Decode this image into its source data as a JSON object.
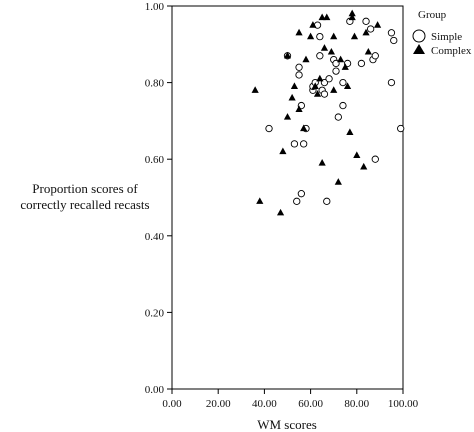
{
  "chart_data": {
    "type": "scatter",
    "title": "",
    "xlabel": "WM scores",
    "ylabel_lines": [
      "Proportion scores of",
      "correctly recalled recasts"
    ],
    "xlim": [
      0,
      100
    ],
    "ylim": [
      0,
      1
    ],
    "x_ticks": [
      0,
      20,
      40,
      60,
      80,
      100
    ],
    "x_tick_labels": [
      "0.00",
      "20.00",
      "40.00",
      "60.00",
      "80.00",
      "100.00"
    ],
    "y_ticks": [
      0,
      0.2,
      0.4,
      0.6,
      0.8,
      1.0
    ],
    "y_tick_labels": [
      "0.00",
      "0.20",
      "0.40",
      "0.60",
      "0.80",
      "1.00"
    ],
    "grid": false,
    "legend": {
      "title": "Group",
      "placement": "top-right",
      "entries": [
        {
          "name": "Simple",
          "marker": "open-circle"
        },
        {
          "name": "Complex",
          "marker": "filled-triangle"
        }
      ]
    },
    "series": [
      {
        "name": "Simple",
        "marker": "open-circle",
        "points": [
          [
            42,
            0.68
          ],
          [
            50,
            0.87
          ],
          [
            53,
            0.64
          ],
          [
            54,
            0.49
          ],
          [
            55,
            0.84
          ],
          [
            55,
            0.82
          ],
          [
            56,
            0.51
          ],
          [
            56,
            0.74
          ],
          [
            57,
            0.64
          ],
          [
            58,
            0.68
          ],
          [
            61,
            0.78
          ],
          [
            61,
            0.79
          ],
          [
            62,
            0.8
          ],
          [
            63,
            0.95
          ],
          [
            64,
            0.92
          ],
          [
            64,
            0.87
          ],
          [
            65,
            0.78
          ],
          [
            66,
            0.77
          ],
          [
            66,
            0.8
          ],
          [
            67,
            0.49
          ],
          [
            68,
            0.81
          ],
          [
            70,
            0.86
          ],
          [
            71,
            0.85
          ],
          [
            71,
            0.83
          ],
          [
            72,
            0.71
          ],
          [
            74,
            0.74
          ],
          [
            74,
            0.8
          ],
          [
            76,
            0.85
          ],
          [
            77,
            0.96
          ],
          [
            82,
            0.85
          ],
          [
            84,
            0.96
          ],
          [
            86,
            0.94
          ],
          [
            87,
            0.86
          ],
          [
            88,
            0.87
          ],
          [
            88,
            0.6
          ],
          [
            95,
            0.93
          ],
          [
            96,
            0.91
          ],
          [
            95,
            0.8
          ],
          [
            99,
            0.68
          ]
        ]
      },
      {
        "name": "Complex",
        "marker": "filled-triangle",
        "points": [
          [
            36,
            0.78
          ],
          [
            38,
            0.49
          ],
          [
            47,
            0.46
          ],
          [
            48,
            0.62
          ],
          [
            50,
            0.71
          ],
          [
            50,
            0.87
          ],
          [
            52,
            0.76
          ],
          [
            53,
            0.79
          ],
          [
            55,
            0.93
          ],
          [
            55,
            0.73
          ],
          [
            57,
            0.68
          ],
          [
            58,
            0.86
          ],
          [
            60,
            0.92
          ],
          [
            61,
            0.95
          ],
          [
            62,
            0.79
          ],
          [
            63,
            0.77
          ],
          [
            64,
            0.81
          ],
          [
            65,
            0.97
          ],
          [
            65,
            0.59
          ],
          [
            66,
            0.89
          ],
          [
            67,
            0.97
          ],
          [
            69,
            0.88
          ],
          [
            70,
            0.78
          ],
          [
            70,
            0.92
          ],
          [
            72,
            0.54
          ],
          [
            73,
            0.86
          ],
          [
            75,
            0.84
          ],
          [
            76,
            0.79
          ],
          [
            77,
            0.67
          ],
          [
            78,
            0.97
          ],
          [
            78,
            0.98
          ],
          [
            79,
            0.92
          ],
          [
            80,
            0.61
          ],
          [
            83,
            0.58
          ],
          [
            84,
            0.93
          ],
          [
            85,
            0.88
          ],
          [
            89,
            0.95
          ]
        ]
      }
    ]
  }
}
